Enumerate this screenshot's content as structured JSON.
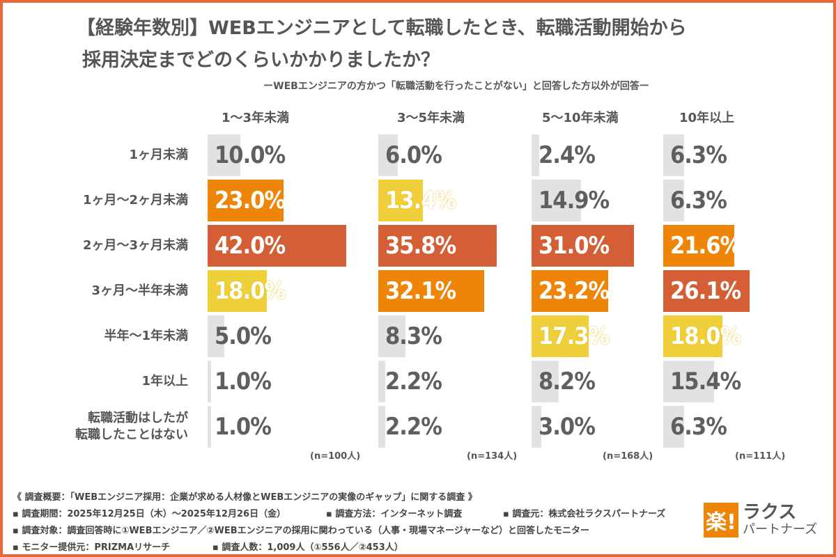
{
  "title_line1": "【経験年数別】WEBエンジニアとして転職したとき、転職活動開始から",
  "title_line2": "採用決定までどのくらいかかりましたか？",
  "subtitle": "ーWEBエンジニアの方かつ「転職活動を行ったことがない」と回答した方以外が回答ー",
  "colors": {
    "rank1": "#d45f36",
    "rank2": "#ef8506",
    "rank3": "#f0d03a",
    "other": "#e3e1e1",
    "frame": "#e8683a"
  },
  "chart_data": {
    "type": "bar",
    "orientation": "horizontal",
    "unit": "%",
    "categories": [
      "1ヶ月未満",
      "1ヶ月〜2ヶ月未満",
      "2ヶ月〜3ヶ月未満",
      "3ヶ月〜半年未満",
      "半年〜1年未満",
      "1年以上",
      "転職活動はしたが\n転職したことはない"
    ],
    "series": [
      {
        "name": "1〜3年未満",
        "n": "(n=100人)",
        "values": [
          10.0,
          23.0,
          42.0,
          18.0,
          5.0,
          1.0,
          1.0
        ]
      },
      {
        "name": "3〜5年未満",
        "n": "(n=134人)",
        "values": [
          6.0,
          13.4,
          35.8,
          32.1,
          8.3,
          2.2,
          2.2
        ]
      },
      {
        "name": "5〜10年未満",
        "n": "(n=168人)",
        "values": [
          2.4,
          14.9,
          31.0,
          23.2,
          17.3,
          8.2,
          3.0
        ]
      },
      {
        "name": "10年以上",
        "n": "(n=111人)",
        "values": [
          6.3,
          6.3,
          21.6,
          26.1,
          18.0,
          15.4,
          6.3
        ]
      }
    ]
  },
  "footer": {
    "line1": "《 調査概要：「WEBエンジニア採用：企業が求める人材像とWEBエンジニアの実像のギャップ」に関する調査 》",
    "period": "▪ 調査期間：2025年12月25日（木）〜2025年12月26日（金）",
    "method": "▪ 調査方法：インターネット調査",
    "source": "▪ 調査元：株式会社ラクスパートナーズ",
    "target": "▪ 調査対象：調査回答時に①WEBエンジニア／②WEBエンジニアの採用に関わっている（人事・現場マネージャーなど）と回答したモニター",
    "provider": "▪ モニター提供元：PRIZMAリサーチ",
    "count": "▪ 調査人数：1,009人（①556人／②453人）"
  },
  "logo": {
    "mark": "楽!",
    "line1": "ラクス",
    "line2": "パートナーズ"
  }
}
